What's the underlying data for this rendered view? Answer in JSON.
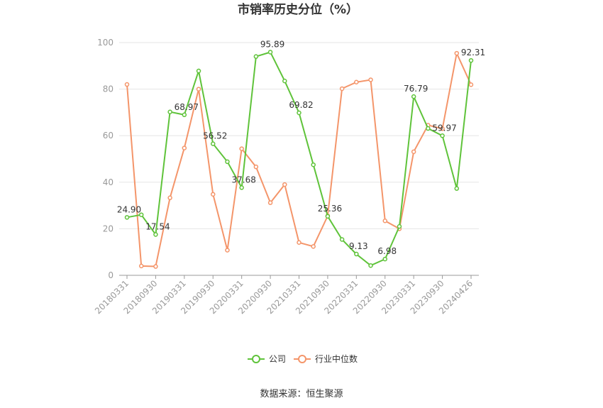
{
  "chart_data": {
    "type": "line",
    "title": "市销率历史分位（%）",
    "source": "数据来源：恒生聚源",
    "ylim": [
      0,
      100
    ],
    "yticks": [
      0,
      20,
      40,
      60,
      80,
      100
    ],
    "x_tick_labels": [
      "20180331",
      "20180930",
      "20190331",
      "20190930",
      "20200331",
      "20200930",
      "20210331",
      "20210930",
      "20220331",
      "20220930",
      "20230331",
      "20230930",
      "20240426"
    ],
    "x": [
      "20180331",
      "20180630",
      "20180930",
      "20181231",
      "20190331",
      "20190630",
      "20190930",
      "20191231",
      "20200331",
      "20200630",
      "20200930",
      "20201231",
      "20210331",
      "20210630",
      "20210930",
      "20211231",
      "20220331",
      "20220630",
      "20220930",
      "20221231",
      "20230331",
      "20230630",
      "20230930",
      "20231231",
      "20240426"
    ],
    "series": [
      {
        "name": "公司",
        "color": "#5fc33a",
        "values": [
          24.9,
          26.0,
          17.54,
          70.2,
          68.97,
          87.8,
          56.52,
          48.8,
          37.68,
          94.0,
          95.89,
          83.5,
          69.82,
          47.5,
          25.36,
          15.4,
          9.13,
          4.2,
          6.98,
          21.0,
          76.79,
          63.1,
          59.97,
          37.3,
          92.31
        ],
        "labels": {
          "0": "24.90",
          "2": "17.54",
          "4": "68.97",
          "6": "56.52",
          "8": "37.68",
          "10": "95.89",
          "12": "69.82",
          "14": "25.36",
          "16": "9.13",
          "18": "6.98",
          "20": "76.79",
          "22": "59.97",
          "24": "92.31"
        }
      },
      {
        "name": "行业中位数",
        "color": "#f4956a",
        "values": [
          82.0,
          4.0,
          3.8,
          33.3,
          54.7,
          80.0,
          34.8,
          10.8,
          54.4,
          46.6,
          31.2,
          39.0,
          14.1,
          12.4,
          25.5,
          80.2,
          83.0,
          84.0,
          23.4,
          20.0,
          53.1,
          64.5,
          63.0,
          95.4,
          81.9
        ]
      }
    ],
    "legend": {
      "position": "bottom"
    },
    "grid": true
  }
}
